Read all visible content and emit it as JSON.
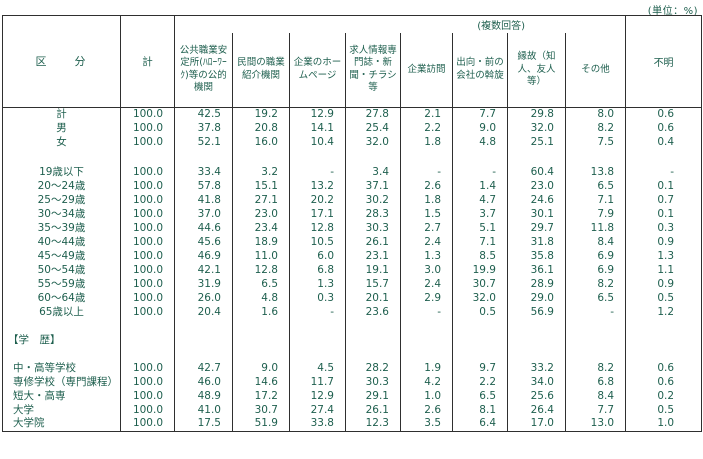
{
  "colors": {
    "ink": "#1e5f4e",
    "line": "#2f2f2f"
  },
  "unit_note": "(単位：%)",
  "table": {
    "corner_header": "区　　分",
    "total_header": "計",
    "group_header": "(複数回答)",
    "unknown_header": "不明",
    "method_headers": [
      "公共職業安定所(ﾊﾛｰﾜｰｸ)等の公的機関",
      "民間の職業紹介機関",
      "企業のホームページ",
      "求人情報専門誌・新聞・チラシ等",
      "企業訪問",
      "出向・前の会社の斡旋",
      "縁故（知人、友人等）",
      "その他"
    ],
    "sections": [
      {
        "name": "total-sex",
        "rows": [
          {
            "label": "計",
            "values": [
              "100.0",
              "42.5",
              "19.2",
              "12.9",
              "27.8",
              "2.1",
              "7.7",
              "29.8",
              "8.0",
              "0.6"
            ]
          },
          {
            "label": "男",
            "values": [
              "100.0",
              "37.8",
              "20.8",
              "14.1",
              "25.4",
              "2.2",
              "9.0",
              "32.0",
              "8.2",
              "0.6"
            ]
          },
          {
            "label": "女",
            "values": [
              "100.0",
              "52.1",
              "16.0",
              "10.4",
              "32.0",
              "1.8",
              "4.8",
              "25.1",
              "7.5",
              "0.4"
            ]
          }
        ]
      },
      {
        "name": "age",
        "rows": [
          {
            "label": "19歳以下",
            "values": [
              "100.0",
              "33.4",
              "3.2",
              "-",
              "3.4",
              "-",
              "-",
              "60.4",
              "13.8",
              "-"
            ]
          },
          {
            "label": "20〜24歳",
            "values": [
              "100.0",
              "57.8",
              "15.1",
              "13.2",
              "37.1",
              "2.6",
              "1.4",
              "23.0",
              "6.5",
              "0.1"
            ]
          },
          {
            "label": "25〜29歳",
            "values": [
              "100.0",
              "41.8",
              "27.1",
              "20.2",
              "30.2",
              "1.8",
              "4.7",
              "24.6",
              "7.1",
              "0.7"
            ]
          },
          {
            "label": "30〜34歳",
            "values": [
              "100.0",
              "37.0",
              "23.0",
              "17.1",
              "28.3",
              "1.5",
              "3.7",
              "30.1",
              "7.9",
              "0.1"
            ]
          },
          {
            "label": "35〜39歳",
            "values": [
              "100.0",
              "44.6",
              "23.4",
              "12.8",
              "30.3",
              "2.7",
              "5.1",
              "29.7",
              "11.8",
              "0.3"
            ]
          },
          {
            "label": "40〜44歳",
            "values": [
              "100.0",
              "45.6",
              "18.9",
              "10.5",
              "26.1",
              "2.4",
              "7.1",
              "31.8",
              "8.4",
              "0.9"
            ]
          },
          {
            "label": "45〜49歳",
            "values": [
              "100.0",
              "46.9",
              "11.0",
              "6.0",
              "23.1",
              "1.3",
              "8.5",
              "35.8",
              "6.9",
              "1.3"
            ]
          },
          {
            "label": "50〜54歳",
            "values": [
              "100.0",
              "42.1",
              "12.8",
              "6.8",
              "19.1",
              "3.0",
              "19.9",
              "36.1",
              "6.9",
              "1.1"
            ]
          },
          {
            "label": "55〜59歳",
            "values": [
              "100.0",
              "31.9",
              "6.5",
              "1.3",
              "15.7",
              "2.4",
              "30.7",
              "28.9",
              "8.2",
              "0.9"
            ]
          },
          {
            "label": "60〜64歳",
            "values": [
              "100.0",
              "26.0",
              "4.8",
              "0.3",
              "20.1",
              "2.9",
              "32.0",
              "29.0",
              "6.5",
              "0.5"
            ]
          },
          {
            "label": "65歳以上",
            "values": [
              "100.0",
              "20.4",
              "1.6",
              "-",
              "23.6",
              "-",
              "0.5",
              "56.9",
              "-",
              "1.2"
            ]
          }
        ]
      },
      {
        "name": "education",
        "section_label": "【学　歴】",
        "rows": [
          {
            "label": "中・高等学校",
            "values": [
              "100.0",
              "42.7",
              "9.0",
              "4.5",
              "28.2",
              "1.9",
              "9.7",
              "33.2",
              "8.2",
              "0.6"
            ]
          },
          {
            "label": "専修学校（専門課程）",
            "values": [
              "100.0",
              "46.0",
              "14.6",
              "11.7",
              "30.3",
              "4.2",
              "2.2",
              "34.0",
              "6.8",
              "0.6"
            ]
          },
          {
            "label": "短大・高専",
            "values": [
              "100.0",
              "48.9",
              "17.2",
              "12.9",
              "29.1",
              "1.0",
              "6.5",
              "25.6",
              "8.4",
              "0.2"
            ]
          },
          {
            "label": "大学",
            "values": [
              "100.0",
              "41.0",
              "30.7",
              "27.4",
              "26.1",
              "2.6",
              "8.1",
              "26.4",
              "7.7",
              "0.5"
            ]
          },
          {
            "label": "大学院",
            "values": [
              "100.0",
              "17.5",
              "51.9",
              "33.8",
              "12.3",
              "3.5",
              "6.4",
              "17.0",
              "13.0",
              "1.0"
            ]
          }
        ]
      }
    ]
  }
}
